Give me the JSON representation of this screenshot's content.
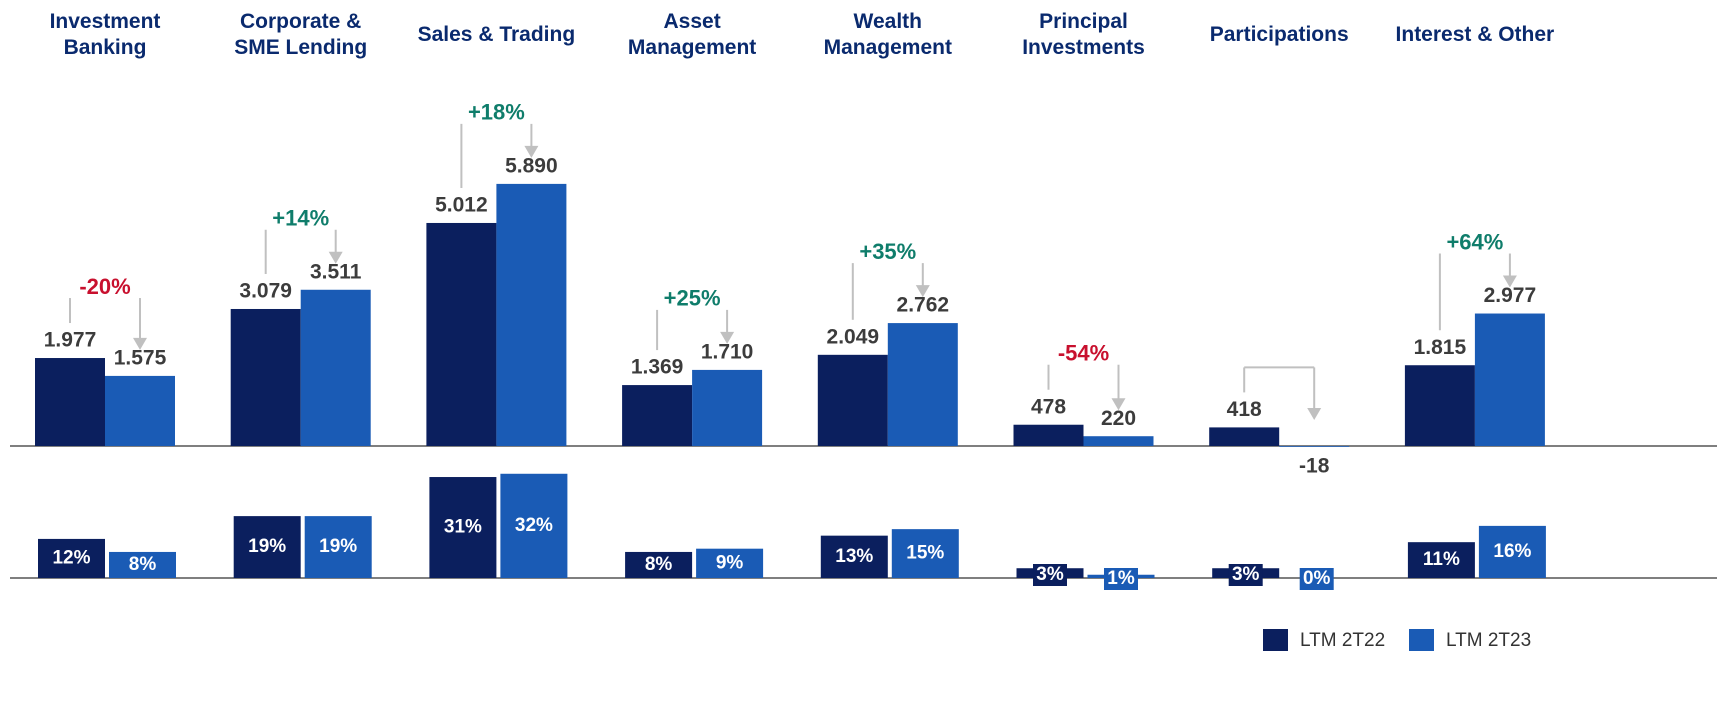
{
  "chart_data": [
    {
      "type": "bar",
      "categories": [
        "Investment\nBanking",
        "Corporate &\nSME Lending",
        "Sales & Trading",
        "Asset\nManagement",
        "Wealth\nManagement",
        "Principal\nInvestments",
        "Participations",
        "Interest & Other"
      ],
      "series": [
        {
          "name": "LTM 2T22",
          "color": "#0b1f5e",
          "values": [
            1977,
            3079,
            5012,
            1369,
            2049,
            478,
            418,
            1815
          ],
          "value_labels": [
            "1.977",
            "3.079",
            "5.012",
            "1.369",
            "2.049",
            "478",
            "418",
            "1.815"
          ]
        },
        {
          "name": "LTM 2T23",
          "color": "#1a5bb5",
          "values": [
            1575,
            3511,
            5890,
            1710,
            2762,
            220,
            -18,
            2977
          ],
          "value_labels": [
            "1.575",
            "3.511",
            "5.890",
            "1.710",
            "2.762",
            "220",
            "-18",
            "2.977"
          ]
        }
      ],
      "changes": {
        "values": [
          -20,
          14,
          18,
          25,
          35,
          -54,
          null,
          64
        ],
        "labels": [
          "-20%",
          "+14%",
          "+18%",
          "+25%",
          "+35%",
          "-54%",
          null,
          "+64%"
        ],
        "positive_color": "#0f7d6b",
        "negative_color": "#c8102e"
      },
      "ylim": [
        0,
        6000
      ]
    },
    {
      "type": "bar",
      "series": [
        {
          "color": "#0b1f5e",
          "values": [
            12,
            19,
            31,
            8,
            13,
            3,
            3,
            11
          ],
          "value_labels": [
            "12%",
            "19%",
            "31%",
            "8%",
            "13%",
            "3%",
            "3%",
            "11%"
          ]
        },
        {
          "color": "#1a5bb5",
          "values": [
            8,
            19,
            32,
            9,
            15,
            1,
            0,
            16
          ],
          "value_labels": [
            "8%",
            "19%",
            "32%",
            "9%",
            "15%",
            "1%",
            "0%",
            "16%"
          ]
        }
      ],
      "ylim": [
        0,
        35
      ]
    }
  ]
}
